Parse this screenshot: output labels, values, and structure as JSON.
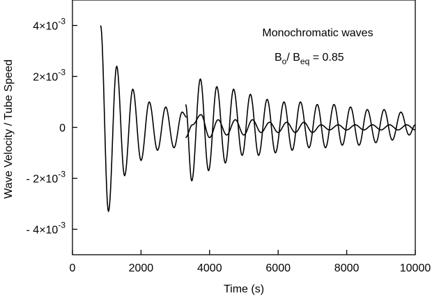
{
  "chart_data": {
    "type": "line",
    "xlabel": "Time  (s)",
    "ylabel": "Wave Velocity / Tube Speed",
    "xlim": [
      0,
      10000
    ],
    "ylim": [
      -0.005,
      0.005
    ],
    "x_ticks": [
      0,
      2000,
      4000,
      6000,
      8000,
      10000
    ],
    "x_tick_labels": [
      "0",
      "2000",
      "4000",
      "6000",
      "8000",
      "10000"
    ],
    "y_ticks": [
      {
        "value": 0.004,
        "mantissa": "4×10",
        "exp": "-3"
      },
      {
        "value": 0.002,
        "mantissa": "2×10",
        "exp": "-3"
      },
      {
        "value": 0,
        "mantissa": "0",
        "exp": ""
      },
      {
        "value": -0.002,
        "mantissa": "- 2×10",
        "exp": "-3"
      },
      {
        "value": -0.004,
        "mantissa": "- 4×10",
        "exp": "-3"
      }
    ],
    "annotation": {
      "line1": "Monochromatic waves",
      "b_main": "B",
      "b_sub": "o",
      "slash_b": "/ B",
      "eq_sub": "eq",
      "value_text": " = 0.85"
    },
    "series": [
      {
        "x": [
          820,
          1050,
          1290,
          1520,
          1760,
          2000,
          2240,
          2480,
          2720,
          2960,
          3200,
          3330
        ],
        "y": [
          0.004,
          -0.0033,
          0.0024,
          -0.0019,
          0.0015,
          -0.0013,
          0.001,
          -0.0009,
          0.0008,
          -0.0008,
          0.0006,
          0.0004
        ],
        "color": "#000000"
      },
      {
        "x": [
          3300,
          3480,
          3730,
          3970,
          4210,
          4460,
          4700,
          4950,
          5190,
          5430,
          5680,
          5920,
          6170,
          6410,
          6650,
          6900,
          7140,
          7380,
          7630,
          7870,
          8110,
          8360,
          8600,
          8850,
          9090,
          9330,
          9580,
          9820,
          10000
        ],
        "y": [
          0.0009,
          -0.0021,
          0.0019,
          -0.0017,
          0.0016,
          -0.0014,
          0.0015,
          -0.0011,
          0.0013,
          -0.0011,
          0.0011,
          -0.001,
          0.001,
          -0.0009,
          0.001,
          -0.0008,
          0.0009,
          -0.0008,
          0.0009,
          -0.0007,
          0.0008,
          -0.0007,
          0.0007,
          -0.0006,
          0.0007,
          -0.0005,
          0.0006,
          -0.0003,
          0.0001
        ],
        "color": "#000000"
      },
      {
        "x": [
          3300,
          3500,
          3750,
          4000,
          4250,
          4500,
          4750,
          5000,
          5250,
          5500,
          5750,
          6000,
          6250,
          6500,
          6750,
          7000,
          7250,
          7500,
          7750,
          8000,
          8250,
          8500,
          8750,
          9000,
          9250,
          9500,
          9750,
          10000
        ],
        "y": [
          -0.0004,
          0.0001,
          0.0005,
          -0.0004,
          0.0003,
          -0.0003,
          0.0003,
          -0.0003,
          0.0003,
          -0.0002,
          0.0002,
          -0.0002,
          0.0002,
          -0.0002,
          0.0002,
          -0.0002,
          0.0001,
          -0.0001,
          0.0001,
          -0.0001,
          0.0001,
          -0.0001,
          0.0001,
          -0.0001,
          0.0001,
          -0.0001,
          0.0001,
          -0.0001
        ],
        "color": "#000000"
      }
    ]
  }
}
